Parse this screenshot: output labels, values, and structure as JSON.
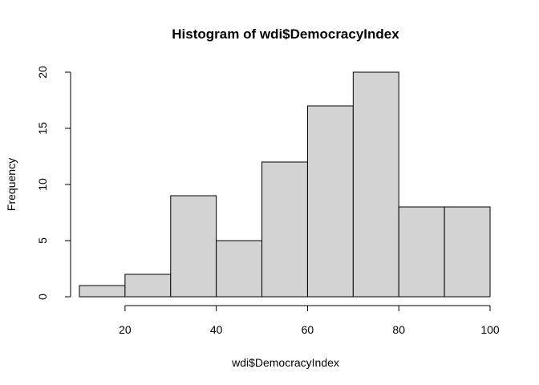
{
  "chart_data": {
    "type": "bar",
    "title": "Histogram of wdi$DemocracyIndex",
    "xlabel": "wdi$DemocracyIndex",
    "ylabel": "Frequency",
    "bins": [
      {
        "start": 10,
        "end": 20,
        "count": 1
      },
      {
        "start": 20,
        "end": 30,
        "count": 2
      },
      {
        "start": 30,
        "end": 40,
        "count": 9
      },
      {
        "start": 40,
        "end": 50,
        "count": 5
      },
      {
        "start": 50,
        "end": 60,
        "count": 12
      },
      {
        "start": 60,
        "end": 70,
        "count": 17
      },
      {
        "start": 70,
        "end": 80,
        "count": 20
      },
      {
        "start": 80,
        "end": 90,
        "count": 8
      },
      {
        "start": 90,
        "end": 100,
        "count": 8
      }
    ],
    "xlim": [
      10,
      100
    ],
    "ylim": [
      0,
      20
    ],
    "x_ticks": [
      20,
      40,
      60,
      80,
      100
    ],
    "y_ticks": [
      0,
      5,
      10,
      15,
      20
    ],
    "bar_fill": "#d3d3d3",
    "bar_stroke": "#000000",
    "grid": false,
    "legend": "none"
  }
}
